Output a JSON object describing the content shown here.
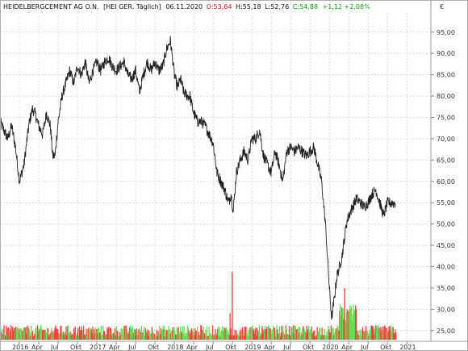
{
  "header": {
    "instrument": "HEIDELBERGCEMENT AG O.N.",
    "exchange": "[HEI GER. Täglich]",
    "date": "06.11.2020",
    "open": "O:53,64",
    "high": "H:55,18",
    "low": "L:52,76",
    "close": "C:54,88",
    "change": "+1,12 +2,08%",
    "currency": "€"
  },
  "colors": {
    "price_line": "#222222",
    "grid": "#dcdcdc",
    "frame": "#9a9a9a",
    "open_text": "#d02020",
    "close_text": "#1a9a1a",
    "vol_up": "#66dd55",
    "vol_down": "#ee4444"
  },
  "chart_data": {
    "type": "line",
    "title": "HEIDELBERGCEMENT AG O.N.",
    "y_ticks": [
      "25,00",
      "30,00",
      "35,00",
      "40,00",
      "45,00",
      "50,00",
      "55,00",
      "60,00",
      "65,00",
      "70,00",
      "75,00",
      "80,00",
      "85,00",
      "90,00",
      "95,00"
    ],
    "x_ticks": [
      "2016",
      "Apr",
      "Jul",
      "Okt",
      "2017",
      "Apr",
      "Jul",
      "Okt",
      "2018",
      "Apr",
      "Jul",
      "Okt",
      "2019",
      "Apr",
      "Jul",
      "Okt",
      "2020",
      "Apr",
      "Jul",
      "Okt",
      "2021"
    ],
    "ylim": [
      22.5,
      99.5
    ],
    "xlim": [
      2015.75,
      2021.3
    ],
    "grid": true,
    "series": [
      {
        "x": [
          2015.75,
          2015.8,
          2015.85,
          2015.9,
          2015.95,
          2016.0,
          2016.03,
          2016.06,
          2016.1,
          2016.13,
          2016.17,
          2016.2,
          2016.25,
          2016.3,
          2016.35,
          2016.4,
          2016.43,
          2016.46,
          2016.5,
          2016.55,
          2016.6,
          2016.65,
          2016.7,
          2016.75,
          2016.8,
          2016.85,
          2016.9,
          2016.95,
          2017.0,
          2017.05,
          2017.1,
          2017.15,
          2017.2,
          2017.25,
          2017.3,
          2017.35,
          2017.4,
          2017.45,
          2017.5,
          2017.55,
          2017.6,
          2017.65,
          2017.7,
          2017.75,
          2017.8,
          2017.85,
          2017.9,
          2017.95,
          2018.0,
          2018.04,
          2018.08,
          2018.12,
          2018.17,
          2018.2,
          2018.25,
          2018.3,
          2018.35,
          2018.4,
          2018.45,
          2018.5,
          2018.55,
          2018.6,
          2018.65,
          2018.7,
          2018.73,
          2018.76,
          2018.8,
          2018.85,
          2018.9,
          2018.95,
          2019.0,
          2019.05,
          2019.1,
          2019.15,
          2019.2,
          2019.25,
          2019.3,
          2019.35,
          2019.4,
          2019.45,
          2019.5,
          2019.55,
          2019.6,
          2019.65,
          2019.7,
          2019.75,
          2019.8,
          2019.85,
          2019.9,
          2019.95,
          2020.0,
          2020.03,
          2020.06,
          2020.1,
          2020.13,
          2020.16,
          2020.19,
          2020.22,
          2020.25,
          2020.3,
          2020.35,
          2020.4,
          2020.45,
          2020.5,
          2020.55,
          2020.6,
          2020.65,
          2020.7,
          2020.75,
          2020.8,
          2020.85
        ],
        "y": [
          74,
          72,
          70,
          73,
          68,
          60,
          62,
          64,
          70,
          74,
          77,
          76,
          73,
          71,
          76,
          73,
          66,
          66,
          74,
          80,
          83,
          86,
          83,
          87,
          85,
          88,
          83,
          86,
          88,
          86,
          88,
          89,
          87,
          86,
          87,
          88,
          85,
          84,
          86,
          81,
          85,
          88,
          86,
          88,
          86,
          87,
          91,
          93,
          85,
          82,
          84,
          81,
          80,
          80,
          76,
          74,
          74,
          73,
          71,
          69,
          62,
          60,
          58,
          55,
          57,
          53,
          62,
          65,
          67,
          65,
          70,
          70,
          72,
          66,
          64,
          62,
          67,
          64,
          60,
          67,
          68,
          67,
          68,
          67,
          66,
          67,
          68,
          64,
          60,
          50,
          35,
          28,
          32,
          38,
          40,
          42,
          46,
          50,
          52,
          54,
          56,
          55,
          54,
          55,
          57,
          58,
          55,
          52,
          55,
          55,
          54.88
        ]
      }
    ],
    "volume_note": "relative bars in volume strip (green up, red down)"
  }
}
